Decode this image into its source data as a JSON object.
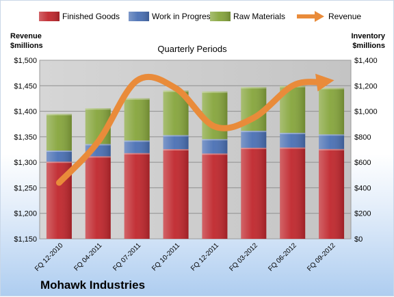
{
  "chart_data": {
    "type": "bar",
    "subtitle": "Quarterly Periods",
    "company": "Mohawk Industries",
    "left_axis_label": [
      "Revenue",
      "$millions"
    ],
    "right_axis_label": [
      "Inventory",
      "$millions"
    ],
    "categories": [
      "FQ 12-2010",
      "FQ 04-2011",
      "FQ 07-2011",
      "FQ 10-2011",
      "FQ 12-2011",
      "FQ 03-2012",
      "FQ 06-2012",
      "FQ 09-2012"
    ],
    "stacked": true,
    "series": [
      {
        "name": "Finished Goods",
        "axis": "right",
        "color": "#c0272d",
        "values": [
          605,
          647,
          672,
          703,
          669,
          714,
          716,
          704
        ]
      },
      {
        "name": "Work in Progress",
        "axis": "right",
        "color": "#4a70b4",
        "values": [
          87,
          96,
          99,
          110,
          113,
          133,
          115,
          115
        ]
      },
      {
        "name": "Raw Materials",
        "axis": "right",
        "color": "#86a53c",
        "values": [
          287,
          280,
          330,
          349,
          373,
          342,
          367,
          364
        ]
      },
      {
        "name": "Revenue",
        "type": "line",
        "axis": "left",
        "color": "#e98b3a",
        "values": [
          1260,
          1340,
          1460,
          1445,
          1370,
          1387,
          1450,
          1460
        ]
      }
    ],
    "left_axis": {
      "min": 1150,
      "max": 1500,
      "step": 50,
      "ticks": [
        "$1,150",
        "$1,200",
        "$1,250",
        "$1,300",
        "$1,350",
        "$1,400",
        "$1,450",
        "$1,500"
      ]
    },
    "right_axis": {
      "min": 0,
      "max": 1400,
      "step": 200,
      "ticks": [
        "$0",
        "$200",
        "$400",
        "$600",
        "$800",
        "$1,000",
        "$1,200",
        "$1,400"
      ]
    },
    "grid": true,
    "legend_position": "top"
  }
}
